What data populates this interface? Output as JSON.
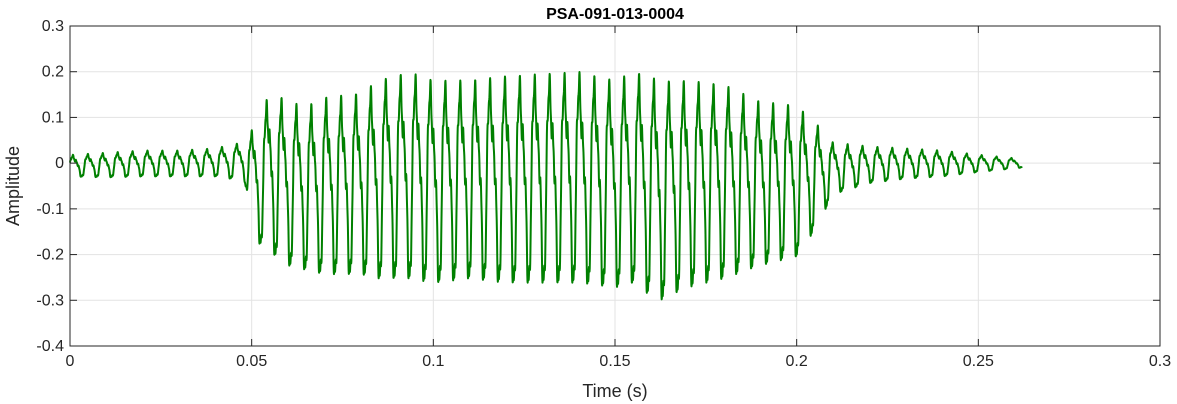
{
  "chart_data": {
    "type": "line",
    "title": "PSA-091-013-0004",
    "xlabel": "Time (s)",
    "ylabel": "Amplitude",
    "xlim": [
      0,
      0.3
    ],
    "ylim": [
      -0.4,
      0.3
    ],
    "xticks": [
      0,
      0.05,
      0.1,
      0.15,
      0.2,
      0.25,
      0.3
    ],
    "xtick_labels": [
      "0",
      "0.05",
      "0.1",
      "0.15",
      "0.2",
      "0.25",
      "0.3"
    ],
    "yticks": [
      -0.4,
      -0.3,
      -0.2,
      -0.1,
      0,
      0.1,
      0.2,
      0.3
    ],
    "ytick_labels": [
      "-0.4",
      "-0.3",
      "-0.2",
      "-0.1",
      "0",
      "0.1",
      "0.2",
      "0.3"
    ],
    "grid": true,
    "line_color": "#008000",
    "series": [
      {
        "x": [
          0,
          0.01,
          0.02,
          0.03,
          0.04,
          0.048,
          0.05,
          0.052,
          0.055,
          0.06,
          0.065,
          0.07,
          0.08,
          0.085,
          0.09,
          0.093,
          0.1,
          0.11,
          0.12,
          0.13,
          0.14,
          0.15,
          0.155,
          0.16,
          0.162,
          0.17,
          0.18,
          0.19,
          0.2,
          0.205,
          0.21,
          0.22,
          0.23,
          0.24,
          0.25,
          0.262
        ],
        "upper": [
          0.02,
          0.025,
          0.03,
          0.03,
          0.035,
          0.05,
          0.08,
          0.1,
          0.175,
          0.15,
          0.14,
          0.16,
          0.17,
          0.2,
          0.21,
          0.22,
          0.2,
          0.2,
          0.21,
          0.215,
          0.22,
          0.2,
          0.22,
          0.21,
          0.2,
          0.2,
          0.19,
          0.15,
          0.14,
          0.1,
          0.05,
          0.04,
          0.035,
          0.03,
          0.02,
          0.01
        ],
        "lower": [
          -0.03,
          -0.032,
          -0.03,
          -0.03,
          -0.03,
          -0.04,
          -0.12,
          -0.18,
          -0.2,
          -0.23,
          -0.24,
          -0.25,
          -0.25,
          -0.26,
          -0.26,
          -0.26,
          -0.27,
          -0.26,
          -0.27,
          -0.27,
          -0.27,
          -0.28,
          -0.27,
          -0.3,
          -0.31,
          -0.28,
          -0.26,
          -0.23,
          -0.21,
          -0.15,
          -0.07,
          -0.045,
          -0.035,
          -0.03,
          -0.02,
          -0.01
        ],
        "cycle_period": 0.0041
      }
    ]
  }
}
